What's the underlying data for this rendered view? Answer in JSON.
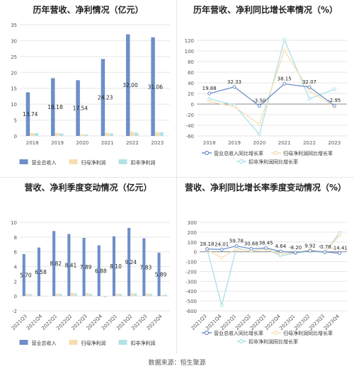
{
  "source": "数据来源：恒生聚源",
  "colors": {
    "revenue": "#6e8fc9",
    "net_profit": "#f7ddb0",
    "deducted_profit": "#b3e2e6",
    "rev_line": "#6e8fc9",
    "np_line": "#f7ddb0",
    "dp_line": "#a9e0e6",
    "grid": "#e6e6e6",
    "axis_text": "#555555",
    "zero_line": "#888888"
  },
  "chart_data": [
    {
      "type": "bar",
      "title": "历年营收、净利情况（亿元）",
      "categories": [
        "2018",
        "2019",
        "2020",
        "2021",
        "2022",
        "2023"
      ],
      "ylim": [
        0,
        35
      ],
      "yticks": [
        0,
        5,
        10,
        15,
        20,
        25,
        30,
        35
      ],
      "grid": true,
      "legend_position": "bottom",
      "series": [
        {
          "name": "营业总收入",
          "values": [
            13.74,
            18.18,
            17.54,
            24.23,
            32.0,
            31.06
          ],
          "labels": [
            "13.74",
            "18.18",
            "17.54",
            "24.23",
            "32.00",
            "31.06"
          ]
        },
        {
          "name": "归母净利润",
          "values": [
            0.9,
            0.9,
            0.5,
            1.0,
            1.3,
            1.2
          ]
        },
        {
          "name": "扣非净利润",
          "values": [
            0.9,
            0.8,
            0.4,
            0.8,
            1.0,
            1.2
          ]
        }
      ]
    },
    {
      "type": "line",
      "title": "历年营收、净利同比增长率情况（%）",
      "categories": [
        "2018",
        "2019",
        "2020",
        "2021",
        "2022",
        "2023"
      ],
      "ylim": [
        -60,
        120
      ],
      "yticks": [
        -60,
        -40,
        -20,
        0,
        20,
        40,
        60,
        80,
        100,
        120
      ],
      "grid": true,
      "legend_position": "bottom",
      "series": [
        {
          "name": "营业总收入同比增长率",
          "values": [
            19.88,
            32.33,
            -3.5,
            38.15,
            32.07,
            -2.95
          ],
          "labels": [
            "19.88",
            "32.33",
            "-3.50",
            "38.15",
            "32.07",
            "-2.95"
          ]
        },
        {
          "name": "归母净利润同比增长率",
          "values": [
            5,
            -5,
            -38,
            101,
            25,
            -5
          ]
        },
        {
          "name": "扣非净利润同比增长率",
          "values": [
            10,
            -2,
            -57,
            121,
            10,
            28
          ]
        }
      ]
    },
    {
      "type": "bar",
      "title": "营收、净利季度变动情况（亿元）",
      "categories": [
        "2021Q3",
        "2021Q4",
        "2022Q1",
        "2022Q2",
        "2022Q3",
        "2022Q4",
        "2023Q1",
        "2023Q2",
        "2023Q3",
        "2023Q4"
      ],
      "ylim": [
        -2,
        10
      ],
      "yticks": [
        -2,
        0,
        2,
        4,
        6,
        8,
        10
      ],
      "grid": true,
      "legend_position": "bottom",
      "series": [
        {
          "name": "营业总收入",
          "values": [
            5.7,
            6.58,
            8.82,
            8.41,
            7.89,
            6.88,
            8.1,
            9.24,
            7.83,
            5.89
          ],
          "labels": [
            "5.70",
            "6.58",
            "8.82",
            "8.41",
            "7.89",
            "6.88",
            "8.10",
            "9.24",
            "7.83",
            "5.89"
          ]
        },
        {
          "name": "归母净利润",
          "values": [
            0.3,
            0.05,
            0.35,
            0.45,
            0.4,
            -0.1,
            0.35,
            0.4,
            0.35,
            0.15
          ]
        },
        {
          "name": "扣非净利润",
          "values": [
            0.25,
            -0.05,
            0.3,
            0.35,
            0.3,
            -0.15,
            0.3,
            0.35,
            0.3,
            0.2
          ]
        }
      ]
    },
    {
      "type": "line",
      "title": "营收、净利同比增长率季度变动情况（%）",
      "categories": [
        "2021Q3",
        "2021Q4",
        "2022Q1",
        "2022Q2",
        "2022Q3",
        "2022Q4",
        "2023Q1",
        "2023Q2",
        "2023Q3",
        "2023Q4"
      ],
      "ylim": [
        -600,
        300
      ],
      "yticks": [
        -600,
        -500,
        -400,
        -300,
        -200,
        -100,
        0,
        100,
        200,
        300
      ],
      "grid": true,
      "legend_position": "bottom",
      "series": [
        {
          "name": "营业总收入同比增长率",
          "values": [
            28.18,
            24.01,
            59.78,
            30.68,
            38.45,
            4.64,
            -8.2,
            9.92,
            -0.78,
            -14.41
          ],
          "labels": [
            "28.18",
            "24.01",
            "59.78",
            "30.68",
            "38.45",
            "4.64",
            "-8.20",
            "9.92",
            "-0.78",
            "-14.41"
          ]
        },
        {
          "name": "归母净利润同比增长率",
          "values": [
            20,
            -60,
            30,
            10,
            25,
            -20,
            -10,
            20,
            -5,
            170
          ]
        },
        {
          "name": "扣非净利润同比增长率",
          "values": [
            30,
            -545,
            40,
            5,
            30,
            -40,
            -15,
            10,
            -10,
            195
          ]
        }
      ]
    }
  ]
}
